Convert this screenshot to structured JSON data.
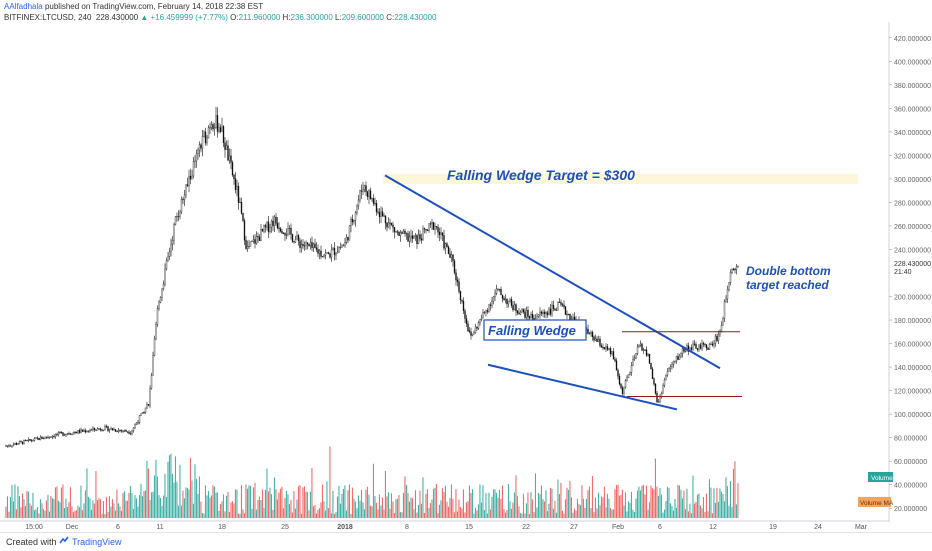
{
  "header": {
    "author": "AAlfadhala",
    "published_text": "published on TradingView.com, February 14, 2018 22:38 EST",
    "symbol": "BITFINEX:LTCUSD, 240",
    "last": "228.430000",
    "change": "▲ +16.459999 (+7.77%)",
    "open_label": "O:",
    "open": "211.960000",
    "high_label": "H:",
    "high": "236.300000",
    "low_label": "L:",
    "low": "209.600000",
    "close_label": "C:",
    "close": "228.430000"
  },
  "chart_data": {
    "type": "candlestick",
    "symbol": "BITFINEX:LTCUSD",
    "timeframe": "240",
    "ylim": [
      10,
      430
    ],
    "price_ticks": [
      "420.000000",
      "400.000000",
      "380.000000",
      "360.000000",
      "340.000000",
      "320.000000",
      "300.000000",
      "280.000000",
      "260.000000",
      "240.000000",
      "220.000000",
      "200.000000",
      "180.000000",
      "160.000000",
      "140.000000",
      "120.000000",
      "100.000000",
      "80.000000",
      "60.000000",
      "40.000000",
      "20.000000"
    ],
    "time_ticks": [
      "15:00",
      "Dec",
      "6",
      "11",
      "18",
      "25",
      "2018",
      "8",
      "15",
      "22",
      "27",
      "Feb",
      "6",
      "12",
      "19",
      "24",
      "Mar"
    ],
    "price_series_dates": [
      "Nov 25",
      "Dec 1",
      "Dec 6",
      "Dec 9",
      "Dec 11",
      "Dec 12",
      "Dec 14",
      "Dec 16",
      "Dec 18",
      "Dec 19",
      "Dec 21",
      "Dec 22",
      "Dec 25",
      "Dec 28",
      "Dec 31",
      "Jan 2",
      "Jan 4",
      "Jan 6",
      "Jan 8",
      "Jan 10",
      "Jan 12",
      "Jan 14",
      "Jan 16",
      "Jan 17",
      "Jan 19",
      "Jan 21",
      "Jan 23",
      "Jan 26",
      "Jan 29",
      "Feb 1",
      "Feb 2",
      "Feb 4",
      "Feb 5",
      "Feb 6",
      "Feb 7",
      "Feb 9",
      "Feb 12",
      "Feb 13",
      "Feb 14",
      "Feb 15"
    ],
    "price_series_close": [
      73,
      83,
      88,
      85,
      110,
      190,
      265,
      310,
      350,
      345,
      285,
      240,
      265,
      245,
      235,
      245,
      295,
      270,
      252,
      248,
      262,
      230,
      165,
      178,
      205,
      190,
      182,
      192,
      170,
      150,
      118,
      160,
      148,
      108,
      135,
      156,
      158,
      170,
      215,
      228
    ],
    "volume_ticks": [
      "Volume",
      "Volume MA"
    ],
    "current_price": "228.430000",
    "current_time": "21:40",
    "annotations": {
      "target": "Falling Wedge Target = $300",
      "wedge": "Falling Wedge",
      "double_bottom": "Double bottom target reached"
    },
    "levels": {
      "target": 300,
      "double_bottom_neck": 170,
      "double_bottom_low": 115
    },
    "colors": {
      "up": "#26a69a",
      "down": "#ef5350",
      "wedge_line": "#1c4fbf",
      "level_line": "#8b1a1a",
      "target_band": "#fdf6d8",
      "annotation_text": "#1c4fbf"
    }
  },
  "footer": {
    "created": "Created with",
    "brand": "TradingView"
  }
}
